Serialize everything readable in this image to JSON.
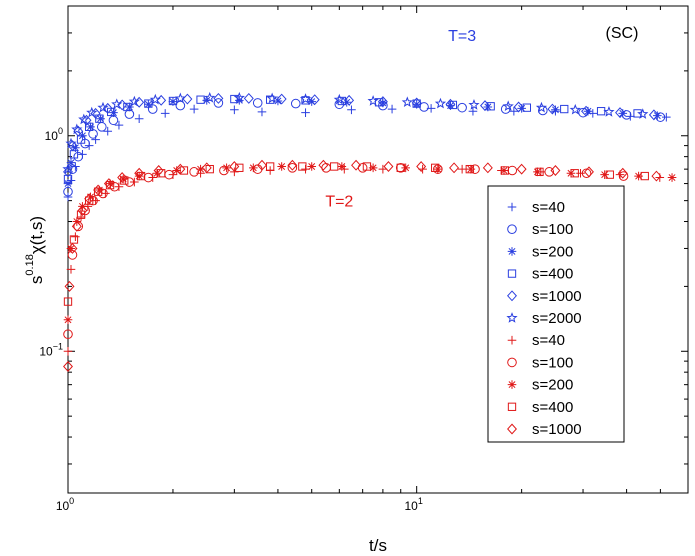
{
  "chart_data": {
    "type": "scatter",
    "xscale": "log",
    "yscale": "log",
    "xlim": [
      1,
      60
    ],
    "ylim": [
      0.022,
      4.0
    ],
    "xlabel": "t/s",
    "ylabel": "s^{0.18}χ(t,s)",
    "ylabel_parts": {
      "base": "s",
      "exp": "0.18",
      "tail": "χ(t,s)"
    },
    "xticks": [
      {
        "value": 1,
        "base": "10",
        "exp": "0"
      },
      {
        "value": 10,
        "base": "10",
        "exp": "1"
      }
    ],
    "yticks": [
      {
        "value": 0.1,
        "base": "10",
        "exp": "−1"
      },
      {
        "value": 1,
        "base": "10",
        "exp": "0"
      }
    ],
    "panel_label": "(SC)",
    "annotations": [
      {
        "text": "T=3",
        "x": 13.5,
        "y": 2.75,
        "color": "#2a3fe0"
      },
      {
        "text": "T=2",
        "x": 6.0,
        "y": 0.47,
        "color": "#e01818"
      }
    ],
    "colors": {
      "blue": "#2a3fe0",
      "red": "#e01818"
    },
    "legend_position": "right",
    "series": [
      {
        "name": "s=40",
        "group": "T=3",
        "marker": "plus",
        "color": "#2a3fe0",
        "x": [
          1.0,
          1.02,
          1.05,
          1.1,
          1.15,
          1.2,
          1.3,
          1.4,
          1.6,
          1.9,
          2.3,
          3.0,
          3.6,
          4.8,
          6.5,
          8.5,
          11,
          14.5,
          19,
          25,
          32,
          41,
          52
        ],
        "y": [
          0.52,
          0.62,
          0.72,
          0.82,
          0.9,
          0.96,
          1.05,
          1.12,
          1.2,
          1.27,
          1.33,
          1.32,
          1.29,
          1.28,
          1.32,
          1.33,
          1.34,
          1.3,
          1.3,
          1.3,
          1.27,
          1.23,
          1.22
        ]
      },
      {
        "name": "s=100",
        "group": "T=3",
        "marker": "circle",
        "color": "#2a3fe0",
        "x": [
          1.0,
          1.03,
          1.07,
          1.12,
          1.18,
          1.25,
          1.35,
          1.5,
          1.75,
          2.1,
          2.7,
          3.5,
          4.5,
          6.0,
          8.0,
          10.5,
          13.5,
          18,
          23,
          30,
          40,
          50
        ],
        "y": [
          0.55,
          0.7,
          0.8,
          0.92,
          1.02,
          1.1,
          1.18,
          1.26,
          1.33,
          1.38,
          1.42,
          1.42,
          1.41,
          1.4,
          1.38,
          1.36,
          1.35,
          1.33,
          1.31,
          1.28,
          1.25,
          1.22
        ]
      },
      {
        "name": "s=200",
        "group": "T=3",
        "marker": "asterisk",
        "color": "#2a3fe0",
        "x": [
          1.0,
          1.02,
          1.05,
          1.1,
          1.16,
          1.24,
          1.35,
          1.5,
          1.7,
          2.0,
          2.5,
          3.1,
          4.0,
          5.0,
          6.3,
          8.0,
          10,
          12.5,
          16,
          20,
          25,
          31,
          39,
          49
        ],
        "y": [
          0.6,
          0.75,
          0.88,
          1.0,
          1.1,
          1.2,
          1.28,
          1.36,
          1.4,
          1.44,
          1.46,
          1.46,
          1.45,
          1.44,
          1.43,
          1.42,
          1.4,
          1.38,
          1.36,
          1.34,
          1.32,
          1.3,
          1.27,
          1.24
        ]
      },
      {
        "name": "s=400",
        "group": "T=3",
        "marker": "square",
        "color": "#2a3fe0",
        "x": [
          1.0,
          1.04,
          1.09,
          1.15,
          1.23,
          1.33,
          1.48,
          1.7,
          2.0,
          2.4,
          3.0,
          3.8,
          4.8,
          6.1,
          7.8,
          10,
          12.7,
          16.3,
          20.7,
          26.5,
          33.8,
          43
        ],
        "y": [
          0.63,
          0.82,
          0.96,
          1.1,
          1.2,
          1.29,
          1.36,
          1.41,
          1.45,
          1.47,
          1.48,
          1.47,
          1.46,
          1.45,
          1.43,
          1.41,
          1.39,
          1.37,
          1.35,
          1.33,
          1.3,
          1.27
        ]
      },
      {
        "name": "s=1000",
        "group": "T=3",
        "marker": "diamond",
        "color": "#2a3fe0",
        "x": [
          1.0,
          1.03,
          1.07,
          1.13,
          1.2,
          1.3,
          1.43,
          1.6,
          1.85,
          2.2,
          2.7,
          3.3,
          4.1,
          5.1,
          6.4,
          8.0,
          10,
          12.5,
          15.7,
          19.6,
          24.5,
          30.6,
          38.3,
          47.9
        ],
        "y": [
          0.68,
          0.9,
          1.05,
          1.18,
          1.27,
          1.34,
          1.39,
          1.43,
          1.46,
          1.48,
          1.49,
          1.49,
          1.48,
          1.47,
          1.46,
          1.44,
          1.42,
          1.4,
          1.38,
          1.36,
          1.33,
          1.3,
          1.28,
          1.25
        ]
      },
      {
        "name": "s=2000",
        "group": "T=3",
        "marker": "star",
        "color": "#2a3fe0",
        "x": [
          1.0,
          1.02,
          1.06,
          1.11,
          1.17,
          1.26,
          1.38,
          1.55,
          1.78,
          2.1,
          2.55,
          3.1,
          3.85,
          4.8,
          6.0,
          7.5,
          9.4,
          11.7,
          14.6,
          18.3,
          22.8,
          28.5,
          35.6,
          44.5
        ],
        "y": [
          0.7,
          0.92,
          1.07,
          1.19,
          1.28,
          1.35,
          1.4,
          1.44,
          1.47,
          1.49,
          1.5,
          1.5,
          1.49,
          1.48,
          1.47,
          1.45,
          1.43,
          1.41,
          1.39,
          1.37,
          1.35,
          1.32,
          1.29,
          1.26
        ]
      },
      {
        "name": "s=40",
        "group": "T=2",
        "marker": "plus",
        "color": "#e01818",
        "x": [
          1.0,
          1.02,
          1.05,
          1.09,
          1.14,
          1.2,
          1.28,
          1.4,
          1.55,
          1.75,
          2.0,
          2.4,
          3.0,
          3.8,
          4.8,
          6.2,
          8.0,
          10.4,
          13.5,
          17.5,
          22.7,
          29.5,
          38.3,
          49.8
        ],
        "y": [
          0.1,
          0.24,
          0.34,
          0.42,
          0.47,
          0.5,
          0.54,
          0.58,
          0.61,
          0.64,
          0.66,
          0.67,
          0.68,
          0.69,
          0.7,
          0.7,
          0.7,
          0.7,
          0.7,
          0.69,
          0.68,
          0.67,
          0.66,
          0.64
        ]
      },
      {
        "name": "s=100",
        "group": "T=2",
        "marker": "circle",
        "color": "#e01818",
        "x": [
          1.0,
          1.03,
          1.07,
          1.12,
          1.18,
          1.26,
          1.36,
          1.5,
          1.7,
          1.95,
          2.3,
          2.8,
          3.5,
          4.4,
          5.5,
          7.0,
          9.0,
          11.5,
          14.7,
          18.8,
          24,
          30.7,
          39.2
        ],
        "y": [
          0.12,
          0.28,
          0.38,
          0.45,
          0.5,
          0.54,
          0.58,
          0.61,
          0.64,
          0.66,
          0.68,
          0.69,
          0.7,
          0.71,
          0.71,
          0.71,
          0.71,
          0.7,
          0.7,
          0.69,
          0.68,
          0.67,
          0.65
        ]
      },
      {
        "name": "s=200",
        "group": "T=2",
        "marker": "asterisk",
        "color": "#e01818",
        "x": [
          1.0,
          1.02,
          1.06,
          1.1,
          1.16,
          1.23,
          1.32,
          1.44,
          1.6,
          1.8,
          2.05,
          2.4,
          2.85,
          3.4,
          4.1,
          5.0,
          6.1,
          7.5,
          9.3,
          11.5,
          14.3,
          17.8,
          22.2,
          27.7,
          34.6,
          43.3,
          54
        ],
        "y": [
          0.14,
          0.3,
          0.4,
          0.47,
          0.52,
          0.56,
          0.6,
          0.63,
          0.65,
          0.67,
          0.69,
          0.7,
          0.71,
          0.71,
          0.72,
          0.72,
          0.72,
          0.71,
          0.71,
          0.7,
          0.7,
          0.69,
          0.68,
          0.67,
          0.66,
          0.65,
          0.64
        ]
      },
      {
        "name": "s=400",
        "group": "T=2",
        "marker": "square",
        "color": "#e01818",
        "x": [
          1.0,
          1.04,
          1.09,
          1.15,
          1.22,
          1.32,
          1.45,
          1.62,
          1.85,
          2.15,
          2.55,
          3.1,
          3.8,
          4.7,
          5.8,
          7.2,
          9.0,
          11.3,
          14.2,
          17.9,
          22.5,
          28.4,
          35.8,
          45.1
        ],
        "y": [
          0.17,
          0.33,
          0.43,
          0.5,
          0.55,
          0.59,
          0.62,
          0.65,
          0.67,
          0.69,
          0.7,
          0.71,
          0.72,
          0.72,
          0.72,
          0.72,
          0.71,
          0.71,
          0.7,
          0.69,
          0.68,
          0.67,
          0.66,
          0.65
        ]
      },
      {
        "name": "s=1000",
        "group": "T=2",
        "marker": "diamond",
        "color": "#e01818",
        "x": [
          1.0,
          1.01,
          1.03,
          1.06,
          1.1,
          1.15,
          1.22,
          1.31,
          1.43,
          1.6,
          1.82,
          2.1,
          2.5,
          3.0,
          3.6,
          4.4,
          5.4,
          6.7,
          8.3,
          10.3,
          12.8,
          16,
          20,
          25,
          31.2,
          39,
          48.7
        ],
        "y": [
          0.085,
          0.2,
          0.3,
          0.38,
          0.45,
          0.51,
          0.56,
          0.6,
          0.64,
          0.67,
          0.69,
          0.7,
          0.71,
          0.72,
          0.73,
          0.73,
          0.73,
          0.73,
          0.72,
          0.72,
          0.71,
          0.71,
          0.7,
          0.69,
          0.68,
          0.67,
          0.65
        ]
      }
    ]
  }
}
